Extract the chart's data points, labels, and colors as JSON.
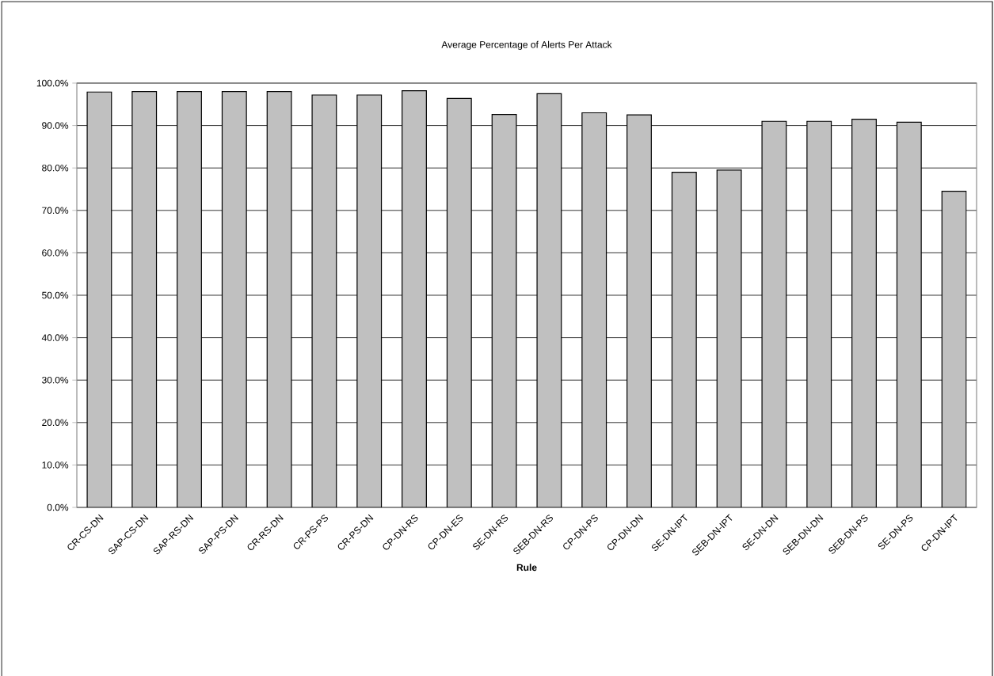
{
  "chart_data": {
    "type": "bar",
    "title": "Average Percentage of Alerts Per Attack",
    "xlabel": "Rule",
    "categories": [
      "CR-CS-DN",
      "SAP-CS-DN",
      "SAP-RS-DN",
      "SAP-PS-DN",
      "CR-RS-DN",
      "CR-PS-PS",
      "CR-PS-DN",
      "CP-DN-RS",
      "CP-DN-ES",
      "SE-DN-RS",
      "SEB-DN-RS",
      "CP-DN-PS",
      "CP-DN-DN",
      "SE-DN-IPT",
      "SEB-DN-IPT",
      "SE-DN-DN",
      "SEB-DN-DN",
      "SEB-DN-PS",
      "SE-DN-PS",
      "CP-DN-IPT"
    ],
    "values": [
      97.9,
      98.0,
      98.0,
      98.0,
      98.0,
      97.2,
      97.2,
      98.2,
      96.4,
      92.6,
      97.5,
      93.0,
      92.5,
      79.0,
      79.5,
      91.0,
      91.0,
      91.5,
      90.8,
      74.5
    ],
    "color": "#c0c0c0",
    "ylim": [
      0,
      100
    ],
    "yticks": [
      {
        "value": 0,
        "label": "0.0%"
      },
      {
        "value": 10,
        "label": "10.0%"
      },
      {
        "value": 20,
        "label": "20.0%"
      },
      {
        "value": 30,
        "label": "30.0%"
      },
      {
        "value": 40,
        "label": "40.0%"
      },
      {
        "value": 50,
        "label": "50.0%"
      },
      {
        "value": 60,
        "label": "60.0%"
      },
      {
        "value": 70,
        "label": "70.0%"
      },
      {
        "value": 80,
        "label": "80.0%"
      },
      {
        "value": 90,
        "label": "90.0%"
      },
      {
        "value": 100,
        "label": "100.0%"
      }
    ],
    "grid": "y"
  }
}
